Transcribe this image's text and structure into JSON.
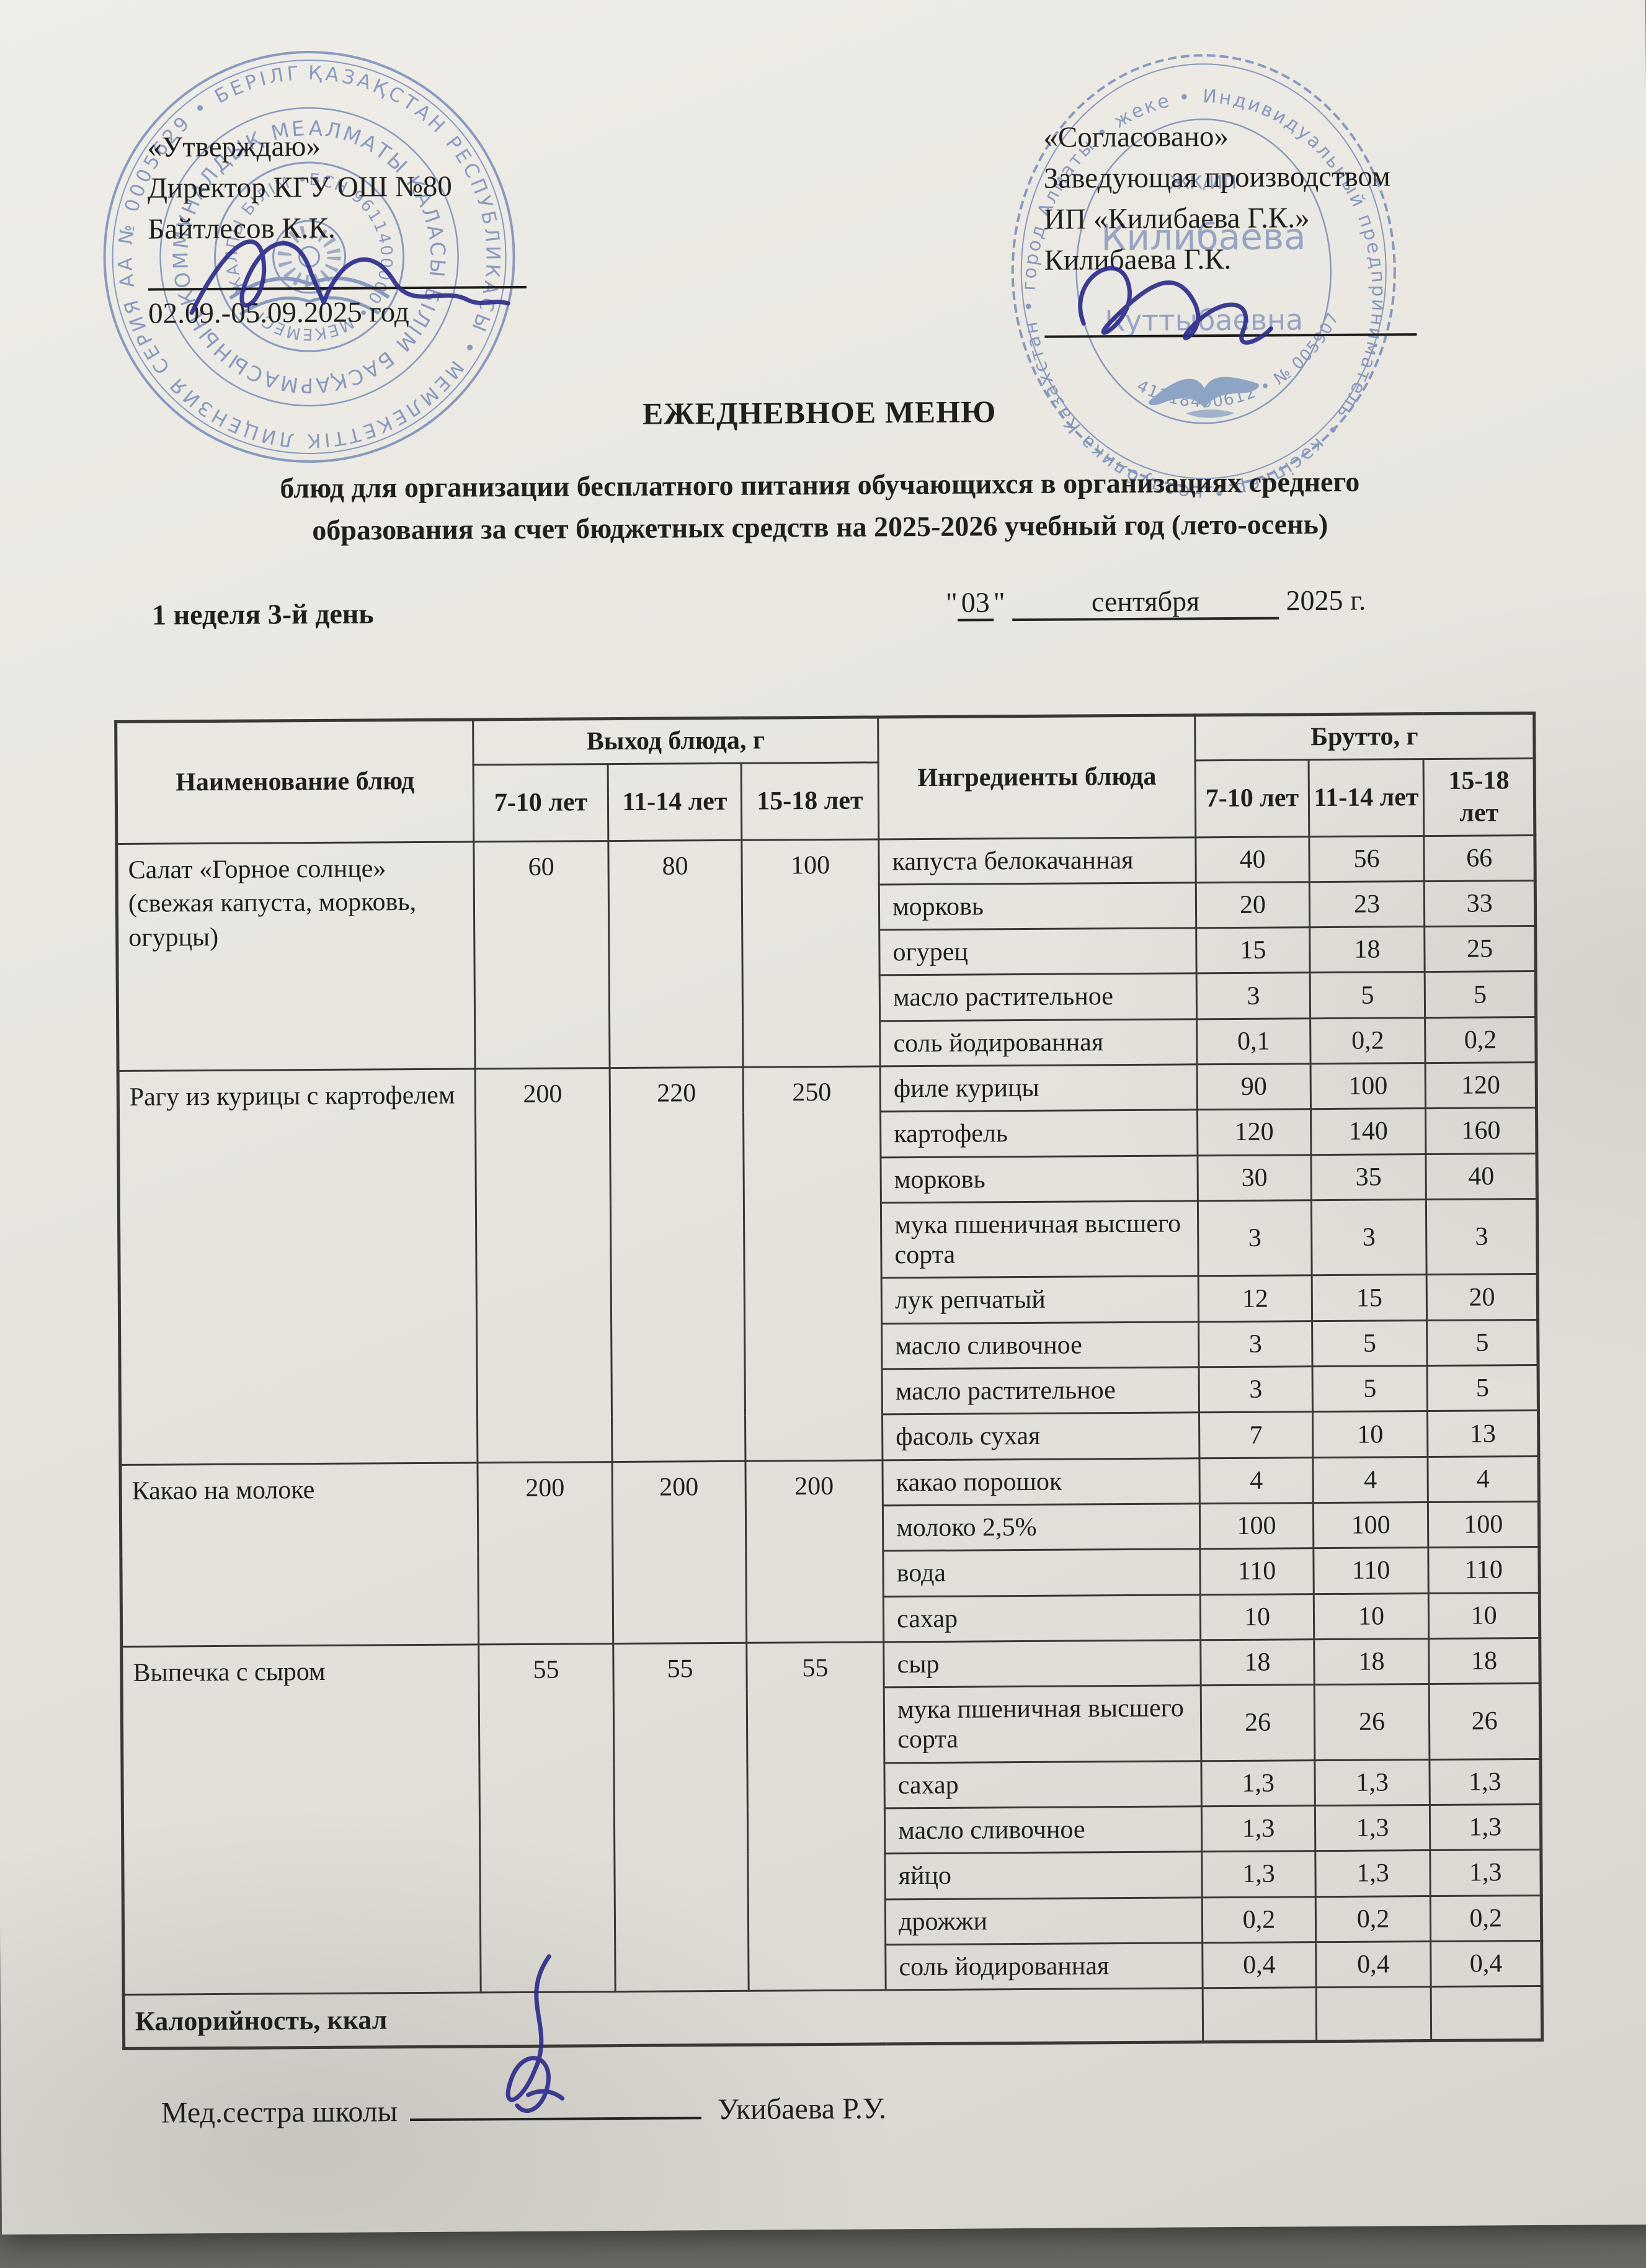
{
  "colors": {
    "stamp_blue": "#7590cc",
    "signature_ink": "#2d2d8e",
    "paper": "#e8e6df",
    "text_ink": "#201f1c"
  },
  "header": {
    "approve": {
      "l1": "«Утверждаю»",
      "l2": "Директор КГУ ОШ №80",
      "l3": "Байтлесов К.К.",
      "date": "02.09.-05.09.2025 год"
    },
    "agree": {
      "l1": "«Согласовано»",
      "l2": "Заведующая производством",
      "l3": "ИП «Килибаева Г.К.»",
      "l4": "Килибаева Г.К."
    }
  },
  "title": "ЕЖЕДНЕВНОЕ МЕНЮ",
  "subtitle_line1": "блюд для организации бесплатного питания обучающихся в организациях среднего",
  "subtitle_line2": "образования за счет бюджетных средств на 2025-2026 учебный год (лето-осень)",
  "week_day": "1 неделя 3-й день",
  "date": {
    "q1": "\"",
    "day": "03 ",
    "q2": "\" ",
    "month": "сентября",
    "year": " 2025 г."
  },
  "table": {
    "col_name": "Наименование блюд",
    "col_out": "Выход блюда, г",
    "col_ing": "Ингредиенты блюда",
    "col_brutto": "Брутто, г",
    "age_cols": [
      "7-10 лет",
      "11-14 лет",
      "15-18 лет"
    ],
    "dishes": [
      {
        "name": "Салат «Горное солнце» (свежая капуста, морковь, огурцы)",
        "out": [
          "60",
          "80",
          "100"
        ],
        "ingredients": [
          {
            "n": "капуста белокачанная",
            "v": [
              "40",
              "56",
              "66"
            ]
          },
          {
            "n": "морковь",
            "v": [
              "20",
              "23",
              "33"
            ]
          },
          {
            "n": "огурец",
            "v": [
              "15",
              "18",
              "25"
            ]
          },
          {
            "n": "масло растительное",
            "v": [
              "3",
              "5",
              "5"
            ]
          },
          {
            "n": "соль йодированная",
            "v": [
              "0,1",
              "0,2",
              "0,2"
            ]
          }
        ]
      },
      {
        "name": "Рагу из курицы с картофелем",
        "out": [
          "200",
          "220",
          "250"
        ],
        "ingredients": [
          {
            "n": "филе курицы",
            "v": [
              "90",
              "100",
              "120"
            ]
          },
          {
            "n": "картофель",
            "v": [
              "120",
              "140",
              "160"
            ]
          },
          {
            "n": "морковь",
            "v": [
              "30",
              "35",
              "40"
            ]
          },
          {
            "n": "мука пшеничная высшего сорта",
            "v": [
              "3",
              "3",
              "3"
            ]
          },
          {
            "n": "лук репчатый",
            "v": [
              "12",
              "15",
              "20"
            ]
          },
          {
            "n": "масло сливочное",
            "v": [
              "3",
              "5",
              "5"
            ]
          },
          {
            "n": "масло растительное",
            "v": [
              "3",
              "5",
              "5"
            ]
          },
          {
            "n": "фасоль сухая",
            "v": [
              "7",
              "10",
              "13"
            ]
          }
        ]
      },
      {
        "name": "Какао на молоке",
        "out": [
          "200",
          "200",
          "200"
        ],
        "ingredients": [
          {
            "n": "какао порошок",
            "v": [
              "4",
              "4",
              "4"
            ]
          },
          {
            "n": "молоко 2,5%",
            "v": [
              "100",
              "100",
              "100"
            ]
          },
          {
            "n": "вода",
            "v": [
              "110",
              "110",
              "110"
            ]
          },
          {
            "n": "сахар",
            "v": [
              "10",
              "10",
              "10"
            ]
          }
        ]
      },
      {
        "name": "Выпечка с сыром",
        "out": [
          "55",
          "55",
          "55"
        ],
        "ingredients": [
          {
            "n": "сыр",
            "v": [
              "18",
              "18",
              "18"
            ]
          },
          {
            "n": "мука пшеничная высшего сорта",
            "v": [
              "26",
              "26",
              "26"
            ]
          },
          {
            "n": "сахар",
            "v": [
              "1,3",
              "1,3",
              "1,3"
            ]
          },
          {
            "n": "масло сливочное",
            "v": [
              "1,3",
              "1,3",
              "1,3"
            ]
          },
          {
            "n": "яйцо",
            "v": [
              "1,3",
              "1,3",
              "1,3"
            ]
          },
          {
            "n": "дрожжи",
            "v": [
              "0,2",
              "0,2",
              "0,2"
            ]
          },
          {
            "n": "соль йодированная",
            "v": [
              "0,4",
              "0,4",
              "0,4"
            ]
          }
        ]
      }
    ],
    "footer_label": "Калорийность, ккал"
  },
  "footer": {
    "label": "Мед.сестра школы",
    "name": "Укибаева Р.У."
  },
  "stamps": {
    "left": {
      "ring1": "ҚАЗАҚСТАН РЕСПУБЛИКАСЫ • МЕМЛЕКЕТТІК ЛИЦЕНЗИЯ СЕРИЯ АА № 0005629 • БЕРІЛГЕН 21.04.2009 •",
      "ring2": "АЛМАТЫ ҚАЛАСЫ БІЛІМ БАСҚАРМАСЫНЫҢ КОММУНАЛДЫҚ МЕМЛЕКЕТТІК",
      "ring3": "БСН 9611400000 • МЕКЕМЕСІ • ЖАЛПЫ БІЛІМ • МЕКТЕБІ"
    },
    "right": {
      "ring1": "Индивидуальный предприниматель • кәсіпкер • Республика Казахстан • город Алматы • жеке •",
      "label": "ЖК/ИП",
      "name1": "Килибаева",
      "name2": "Куттыбаевна",
      "numbers": "41218400612 • № 0059079"
    }
  }
}
